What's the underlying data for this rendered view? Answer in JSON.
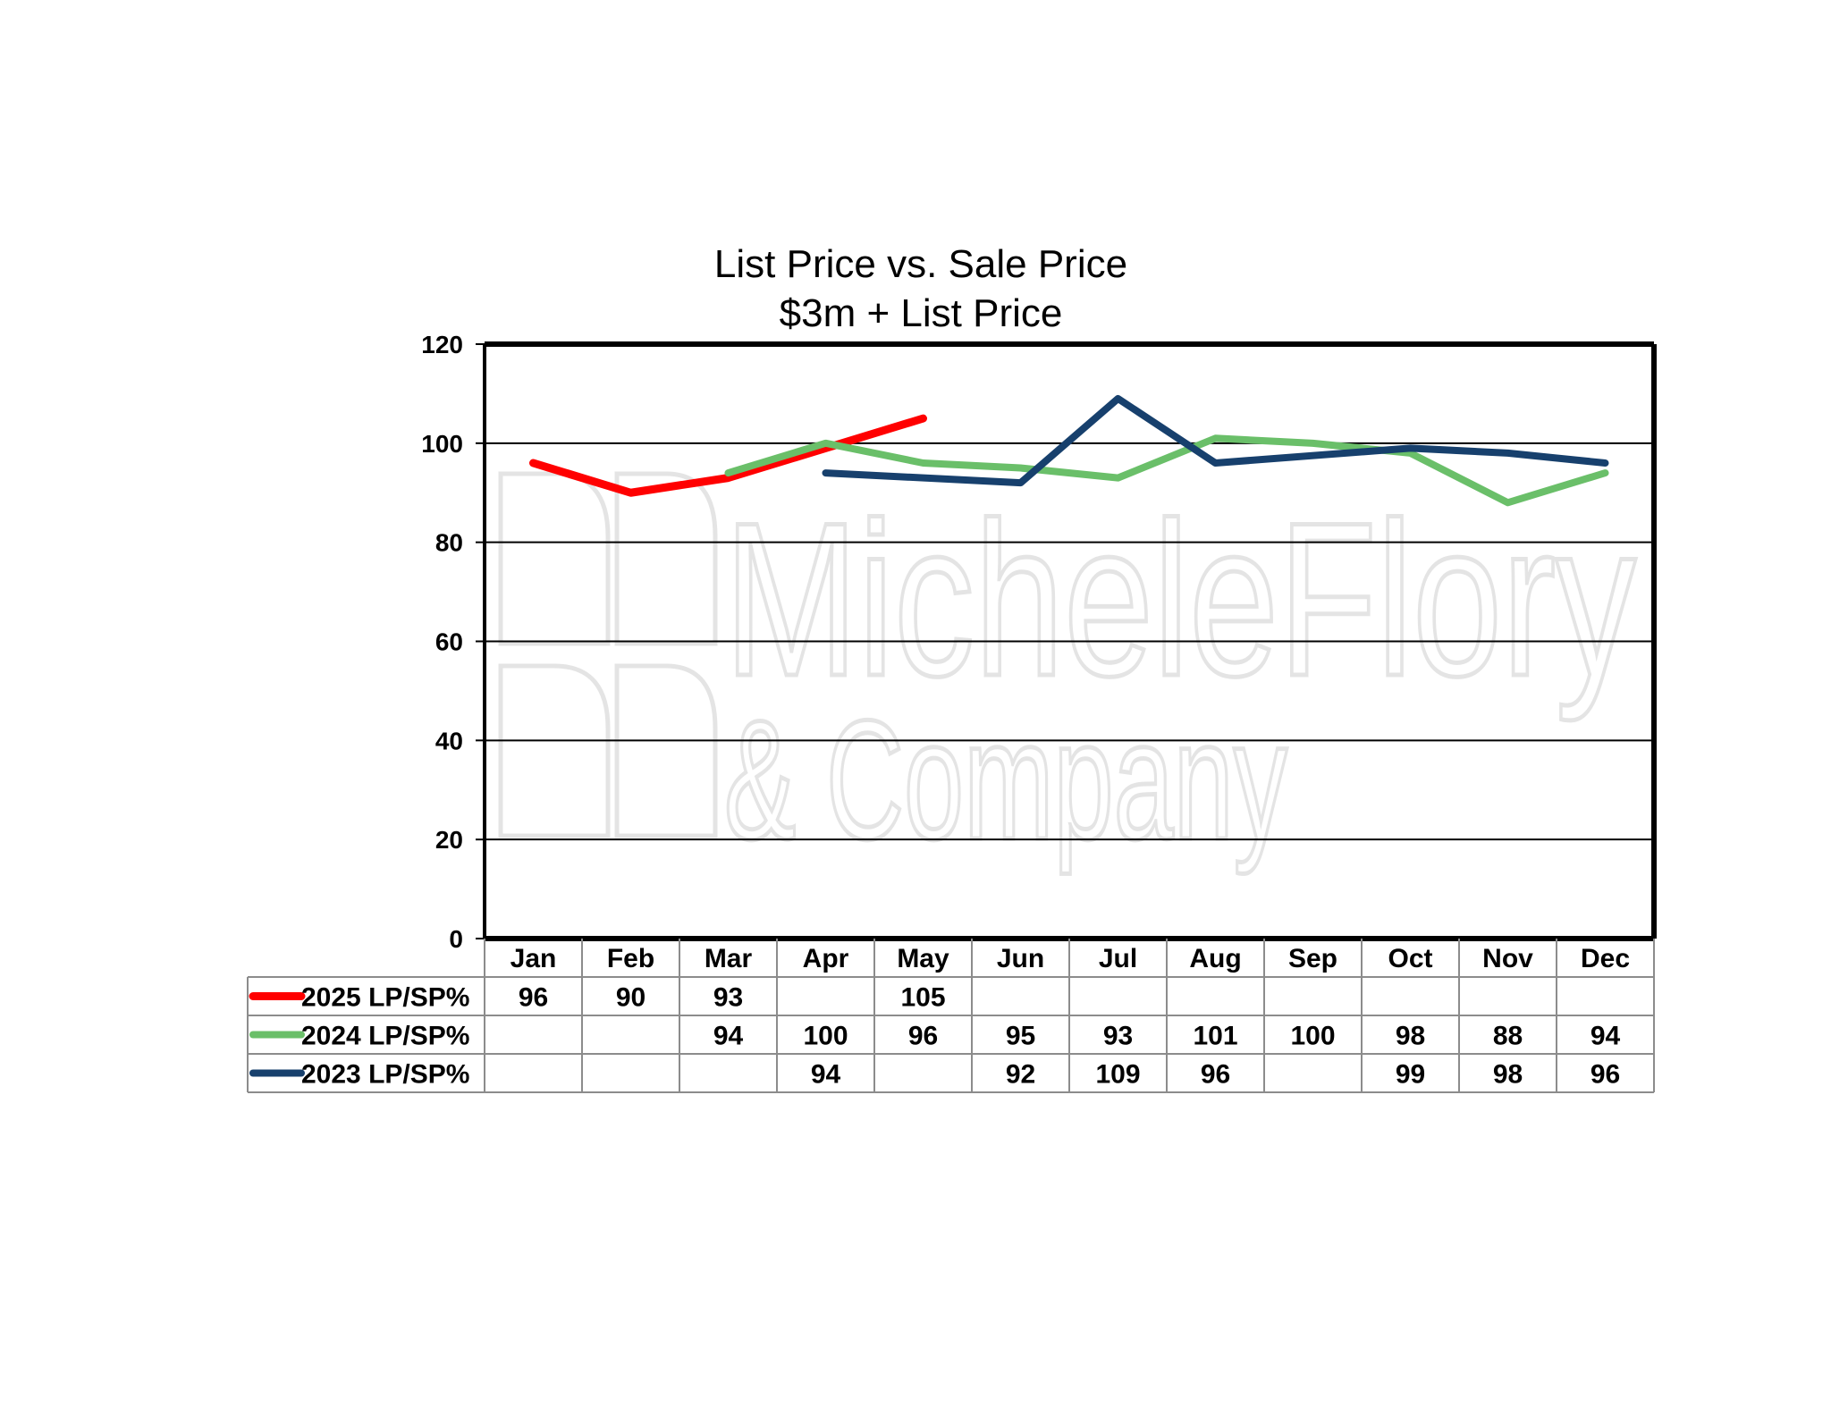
{
  "watermark": {
    "line1": "MicheleFlory",
    "line2": "& Company"
  },
  "chart_data": {
    "type": "line",
    "title": "List Price vs. Sale Price",
    "subtitle": "$3m + List Price",
    "xlabel": "",
    "ylabel": "",
    "categories": [
      "Jan",
      "Feb",
      "Mar",
      "Apr",
      "May",
      "Jun",
      "Jul",
      "Aug",
      "Sep",
      "Oct",
      "Nov",
      "Dec"
    ],
    "ylim": [
      0,
      120
    ],
    "yticks": [
      0,
      20,
      40,
      60,
      80,
      100,
      120
    ],
    "grid": true,
    "legend": "data-table-left",
    "series": [
      {
        "name": "2025 LP/SP%",
        "color": "#ff0000",
        "values": [
          96,
          90,
          93,
          null,
          105,
          null,
          null,
          null,
          null,
          null,
          null,
          null
        ]
      },
      {
        "name": "2024 LP/SP%",
        "color": "#6abf69",
        "values": [
          null,
          null,
          94,
          100,
          96,
          95,
          93,
          101,
          100,
          98,
          88,
          94
        ]
      },
      {
        "name": "2023 LP/SP%",
        "color": "#17406d",
        "values": [
          null,
          null,
          null,
          94,
          null,
          92,
          109,
          96,
          null,
          99,
          98,
          96
        ]
      }
    ]
  }
}
